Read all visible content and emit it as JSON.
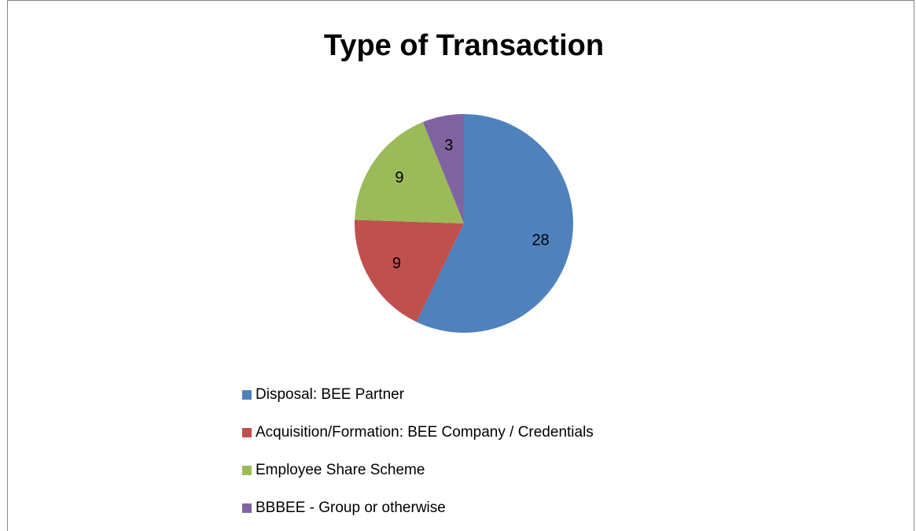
{
  "chart_data": {
    "type": "pie",
    "title": "Type of Transaction",
    "categories": [
      "Disposal: BEE Partner",
      "Acquisition/Formation: BEE Company / Credentials",
      "Employee Share Scheme",
      "BBBEE - Group or otherwise"
    ],
    "values": [
      28,
      9,
      9,
      3
    ],
    "colors": [
      "#4f81bd",
      "#c0504d",
      "#9bbb59",
      "#8064a2"
    ]
  }
}
